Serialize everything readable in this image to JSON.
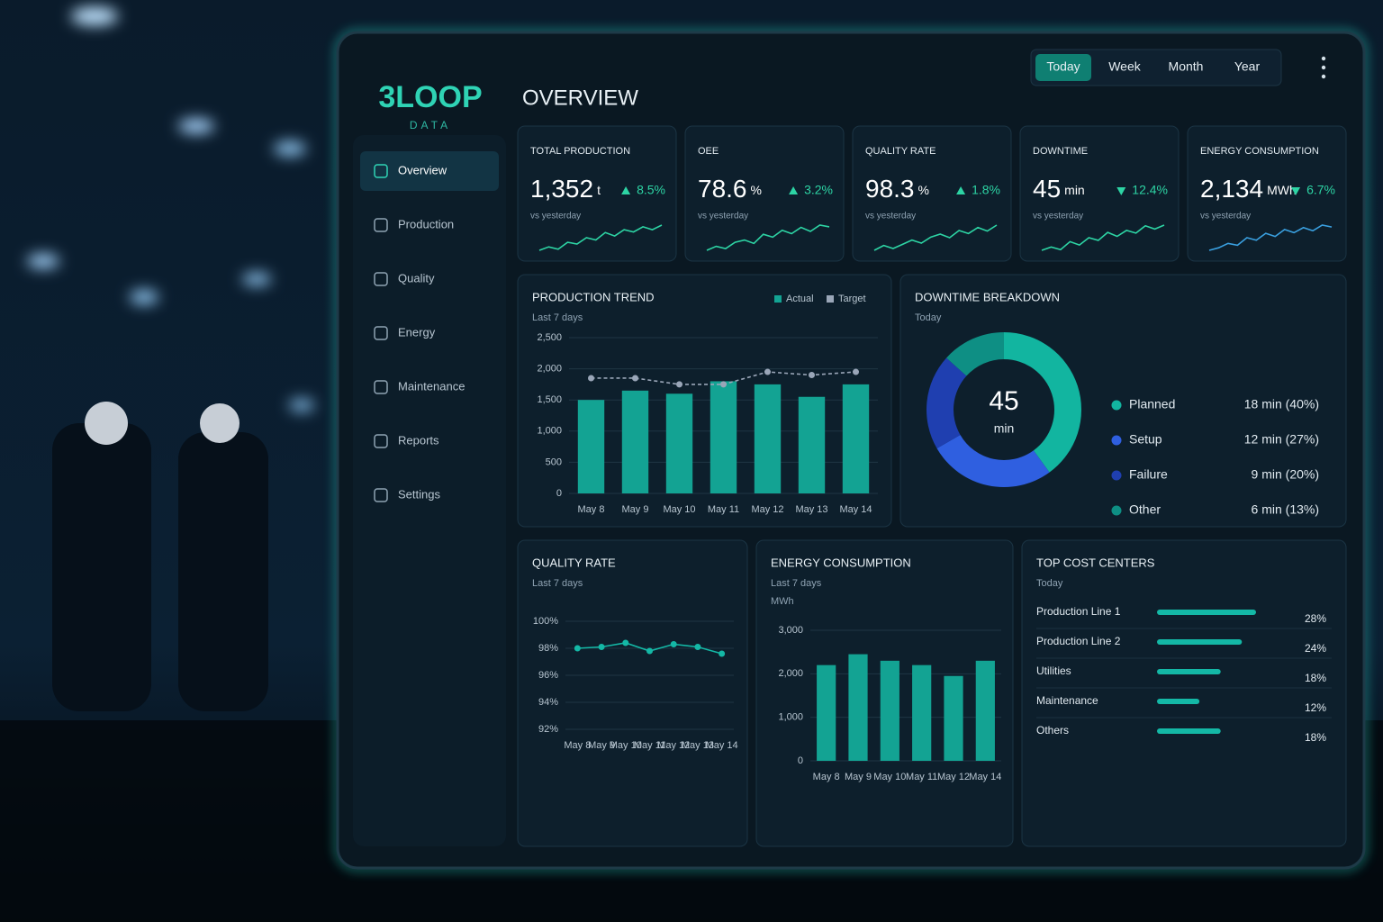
{
  "brand": {
    "name": "3LOOP",
    "tagline": "DATA"
  },
  "nav": [
    {
      "label": "Overview",
      "active": true
    },
    {
      "label": "Production"
    },
    {
      "label": "Quality"
    },
    {
      "label": "Energy"
    },
    {
      "label": "Maintenance"
    },
    {
      "label": "Reports"
    },
    {
      "label": "Settings"
    }
  ],
  "filters": [
    {
      "label": "Today",
      "active": true
    },
    {
      "label": "Week"
    },
    {
      "label": "Month"
    },
    {
      "label": "Year"
    }
  ],
  "title": "OVERVIEW",
  "kpis": [
    {
      "label": "TOTAL PRODUCTION",
      "value": "1,352",
      "unit": "t",
      "change": "8.5%",
      "direction": "up",
      "note": "vs yesterday",
      "sparkline": [
        3,
        3.6,
        3.2,
        4.4,
        4.1,
        5.2,
        4.8,
        6.1,
        5.5,
        6.6,
        6.2,
        7.1,
        6.6,
        7.4
      ]
    },
    {
      "label": "OEE",
      "value": "78.6",
      "unit": "%",
      "change": "3.2%",
      "direction": "up",
      "note": "vs yesterday",
      "sparkline": [
        2.8,
        3.5,
        3.1,
        4.2,
        4.6,
        4.0,
        5.6,
        5.1,
        6.3,
        5.7,
        6.8,
        6.1,
        7.2,
        6.9
      ]
    },
    {
      "label": "QUALITY RATE",
      "value": "98.3",
      "unit": "%",
      "change": "1.8%",
      "direction": "up",
      "note": "vs yesterday",
      "sparkline": [
        3.1,
        3.9,
        3.4,
        4.1,
        4.8,
        4.3,
        5.3,
        5.8,
        5.2,
        6.4,
        5.9,
        6.9,
        6.3,
        7.3
      ]
    },
    {
      "label": "DOWNTIME",
      "value": "45",
      "unit": "min",
      "change": "12.4%",
      "direction": "down",
      "note": "vs yesterday",
      "sparkline": [
        3.2,
        3.7,
        3.3,
        4.5,
        4.0,
        5.1,
        4.7,
        5.9,
        5.3,
        6.2,
        5.8,
        6.9,
        6.4,
        7.0
      ]
    },
    {
      "label": "ENERGY CONSUMPTION",
      "value": "2,134",
      "unit": "MWh",
      "change": "6.7%",
      "direction": "down",
      "note": "vs yesterday",
      "sparkline": [
        3.0,
        3.4,
        4.1,
        3.8,
        5.0,
        4.6,
        5.7,
        5.2,
        6.3,
        5.8,
        6.6,
        6.1,
        7.0,
        6.7
      ]
    }
  ],
  "chart_data": [
    {
      "type": "combo",
      "title": "PRODUCTION TREND",
      "subtitle": "Last 7 days",
      "categories": [
        "May 8",
        "May 9",
        "May 10",
        "May 11",
        "May 12",
        "May 13",
        "May 14"
      ],
      "series": [
        {
          "name": "Actual",
          "type": "bar",
          "color": "#13a393",
          "values": [
            1500,
            1650,
            1600,
            1800,
            1750,
            1550,
            1750
          ]
        },
        {
          "name": "Target",
          "type": "line",
          "color": "#9aa6b8",
          "values": [
            1850,
            1850,
            1750,
            1750,
            1950,
            1900,
            1950
          ]
        }
      ],
      "ylim": [
        0,
        2500
      ],
      "yticks": [
        {
          "value": 2500,
          "label": "2,500"
        },
        {
          "value": 2000,
          "label": "2,000"
        },
        {
          "value": 1500,
          "label": "1,500"
        },
        {
          "value": 1000,
          "label": "1,000"
        },
        500,
        0
      ],
      "legend": "top-right"
    },
    {
      "type": "donut",
      "title": "DOWNTIME BREAKDOWN",
      "subtitle": "Today",
      "categories": [
        "Planned",
        "Setup",
        "Failure",
        "Other"
      ],
      "values": [
        18,
        12,
        9,
        6
      ],
      "value_labels": [
        "18 min (40%)",
        "12 min (27%)",
        "9 min (20%)",
        "6 min (13%)"
      ],
      "colors": [
        "#12b5a0",
        "#2f5fe0",
        "#1f3fb0",
        "#0e8f84"
      ],
      "center_value": "45",
      "center_unit": "min"
    },
    {
      "type": "line",
      "title": "QUALITY RATE",
      "subtitle": "Last 7 days",
      "categories": [
        "May 8",
        "May 9",
        "May 10",
        "May 11",
        "May 12",
        "May 13",
        "May 14"
      ],
      "values": [
        98.0,
        98.1,
        98.4,
        97.8,
        98.3,
        98.1,
        97.6
      ],
      "color": "#14b8a6",
      "ylim": [
        92,
        100
      ],
      "yticks": [
        {
          "value": 100,
          "label": "100%"
        },
        {
          "value": 98,
          "label": "98%"
        },
        {
          "value": 96,
          "label": "96%"
        },
        {
          "value": 94,
          "label": "94%"
        },
        {
          "value": 92,
          "label": "92%"
        }
      ]
    },
    {
      "type": "bar",
      "title": "ENERGY CONSUMPTION",
      "subtitle": "Last 7 days",
      "unit_label": "MWh",
      "categories": [
        "May 8",
        "May 9",
        "May 10",
        "May 11",
        "May 12",
        "May 14"
      ],
      "values": [
        2200,
        2450,
        2300,
        2200,
        1950,
        2300
      ],
      "color": "#13a393",
      "ylim": [
        0,
        3000
      ],
      "yticks": [
        {
          "value": 3000,
          "label": "3,000"
        },
        {
          "value": 2000,
          "label": "2,000"
        },
        {
          "value": 1000,
          "label": "1,000"
        },
        0
      ]
    },
    {
      "type": "hbar",
      "title": "TOP COST CENTERS",
      "subtitle": "Today",
      "categories": [
        "Production Line 1",
        "Production Line 2",
        "Utilities",
        "Maintenance",
        "Others"
      ],
      "values": [
        28,
        24,
        18,
        12,
        18
      ],
      "value_labels": [
        "28%",
        "24%",
        "18%",
        "12%",
        "18%"
      ],
      "color": "#14b8a6"
    }
  ]
}
